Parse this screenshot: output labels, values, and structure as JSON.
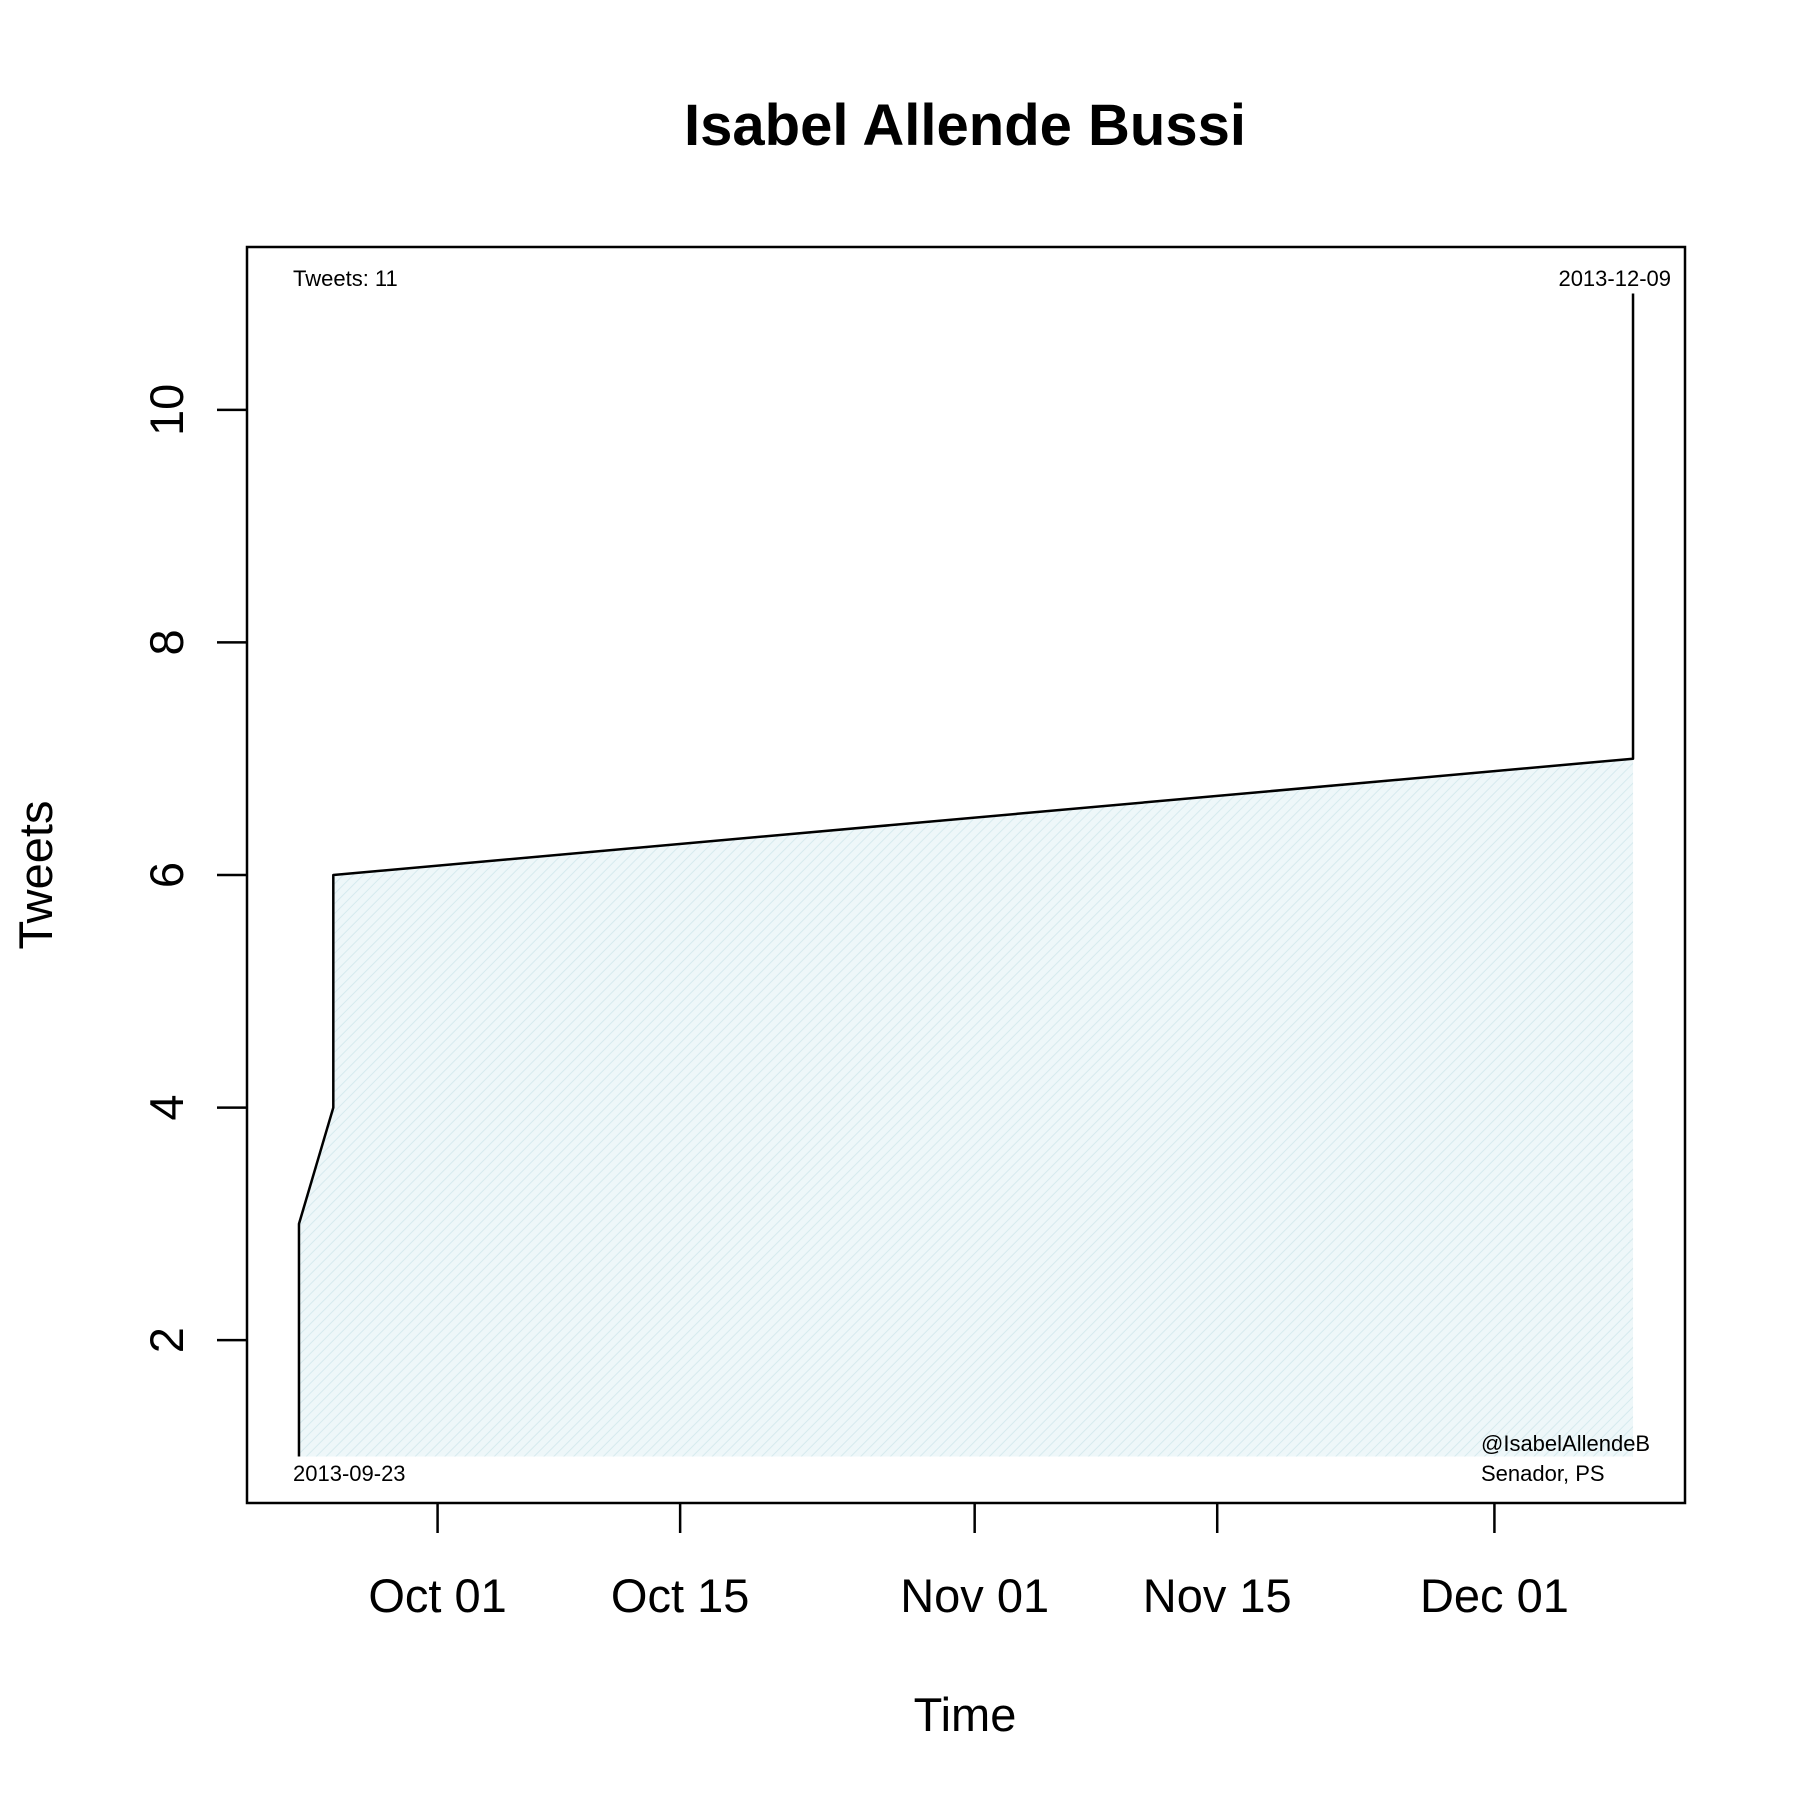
{
  "chart_data": {
    "type": "area",
    "title": "Isabel Allende Bussi",
    "xlabel": "Time",
    "ylabel": "Tweets",
    "x_axis_kind": "date",
    "x_ticks": [
      {
        "date": "2013-10-01",
        "label": "Oct 01"
      },
      {
        "date": "2013-10-15",
        "label": "Oct 15"
      },
      {
        "date": "2013-11-01",
        "label": "Nov 01"
      },
      {
        "date": "2013-11-15",
        "label": "Nov 15"
      },
      {
        "date": "2013-12-01",
        "label": "Dec 01"
      }
    ],
    "y_ticks": [
      2,
      4,
      6,
      8,
      10
    ],
    "xlim": [
      "2013-09-20",
      "2013-12-12"
    ],
    "ylim": [
      0.6,
      11.4
    ],
    "fill_color": "#e8f4f6",
    "line_color": "#000000",
    "grid": false,
    "points": [
      {
        "x": "2013-09-23",
        "y": 1
      },
      {
        "x": "2013-09-23",
        "y": 3
      },
      {
        "x": "2013-09-24",
        "y": 4
      },
      {
        "x": "2013-09-24",
        "y": 6
      },
      {
        "x": "2013-12-09",
        "y": 7
      },
      {
        "x": "2013-12-09",
        "y": 11
      }
    ],
    "annotations": {
      "count": "Tweets: 11",
      "start_date": "2013-09-23",
      "end_date": "2013-12-09",
      "handle": "@IsabelAllendeB",
      "role": "Senador, PS"
    }
  }
}
